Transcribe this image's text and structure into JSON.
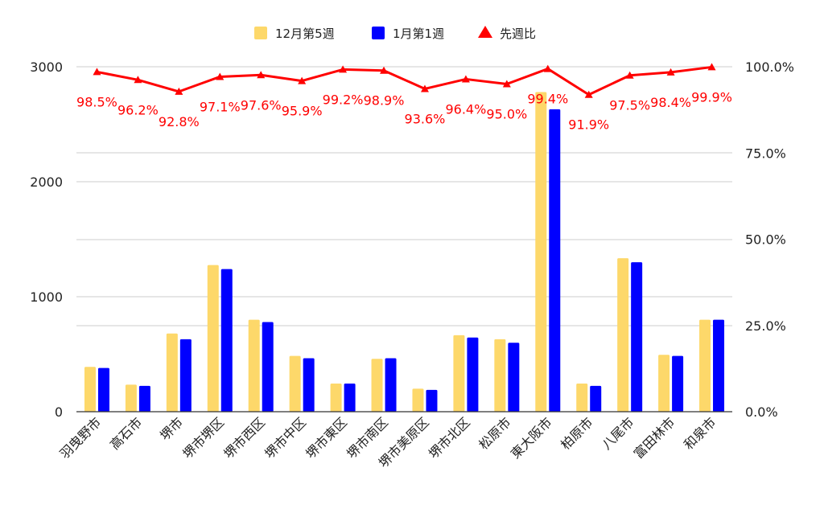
{
  "chart_data": {
    "type": "bar",
    "categories": [
      "羽曳野市",
      "高石市",
      "堺市",
      "堺市堺区",
      "堺市西区",
      "堺市中区",
      "堺市東区",
      "堺市南区",
      "堺市美原区",
      "堺市北区",
      "松原市",
      "東大阪市",
      "柏原市",
      "八尾市",
      "富田林市",
      "和泉市"
    ],
    "series": [
      {
        "name": "12月第5週",
        "color": "#FDD86A",
        "axis": "left",
        "values": [
          390,
          235,
          680,
          1275,
          800,
          485,
          245,
          460,
          200,
          665,
          630,
          2780,
          245,
          1335,
          495,
          800
        ]
      },
      {
        "name": "1月第1週",
        "color": "#0000FF",
        "axis": "left",
        "values": [
          380,
          225,
          630,
          1240,
          780,
          465,
          245,
          465,
          190,
          645,
          600,
          2630,
          225,
          1300,
          485,
          800
        ]
      },
      {
        "name": "先週比",
        "color": "#FF0000",
        "axis": "right",
        "kind": "line",
        "marker": "triangle",
        "values": [
          98.5,
          96.2,
          92.8,
          97.1,
          97.6,
          95.9,
          99.2,
          98.9,
          93.6,
          96.4,
          95.0,
          99.4,
          91.9,
          97.5,
          98.4,
          99.9
        ],
        "labels": [
          "98.5%",
          "96.2%",
          "92.8%",
          "97.1%",
          "97.6%",
          "95.9%",
          "99.2%",
          "98.9%",
          "93.6%",
          "96.4%",
          "95.0%",
          "99.4%",
          "91.9%",
          "97.5%",
          "98.4%",
          "99.9%"
        ]
      }
    ],
    "y_left": {
      "range": [
        0,
        3000
      ],
      "ticks": [
        "0",
        "1000",
        "2000",
        "3000"
      ],
      "tick_values": [
        0,
        1000,
        2000,
        3000
      ]
    },
    "y_right": {
      "range": [
        0,
        100
      ],
      "ticks": [
        "0.0%",
        "25.0%",
        "50.0%",
        "75.0%",
        "100.0%"
      ],
      "tick_values": [
        0,
        25,
        50,
        75,
        100
      ]
    },
    "grid": true,
    "legend_position": "top-center",
    "title": "",
    "xlabel": "",
    "ylabel": ""
  }
}
